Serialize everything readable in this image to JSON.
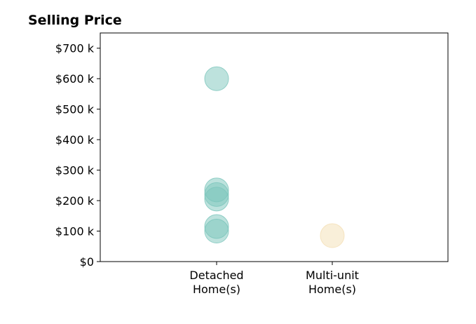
{
  "chart_data": {
    "type": "scatter",
    "title": "Selling Price",
    "xlabel": "",
    "ylabel": "",
    "categories": [
      "Detached\nHome(s)",
      "Multi-unit\nHome(s)"
    ],
    "ylim": [
      0,
      750000
    ],
    "yticks": [
      0,
      100000,
      200000,
      300000,
      400000,
      500000,
      600000,
      700000
    ],
    "ytick_labels": [
      "$0",
      "$100 k",
      "$200 k",
      "$300 k",
      "$400 k",
      "$500 k",
      "$600 k",
      "$700 k"
    ],
    "grid": false,
    "series": [
      {
        "category": "Detached\nHome(s)",
        "color": "#7cc6bb",
        "values": [
          600000,
          235000,
          220000,
          205000,
          115000,
          100000
        ]
      },
      {
        "category": "Multi-unit\nHome(s)",
        "color": "#f4dfb4",
        "values": [
          85000
        ]
      }
    ]
  }
}
